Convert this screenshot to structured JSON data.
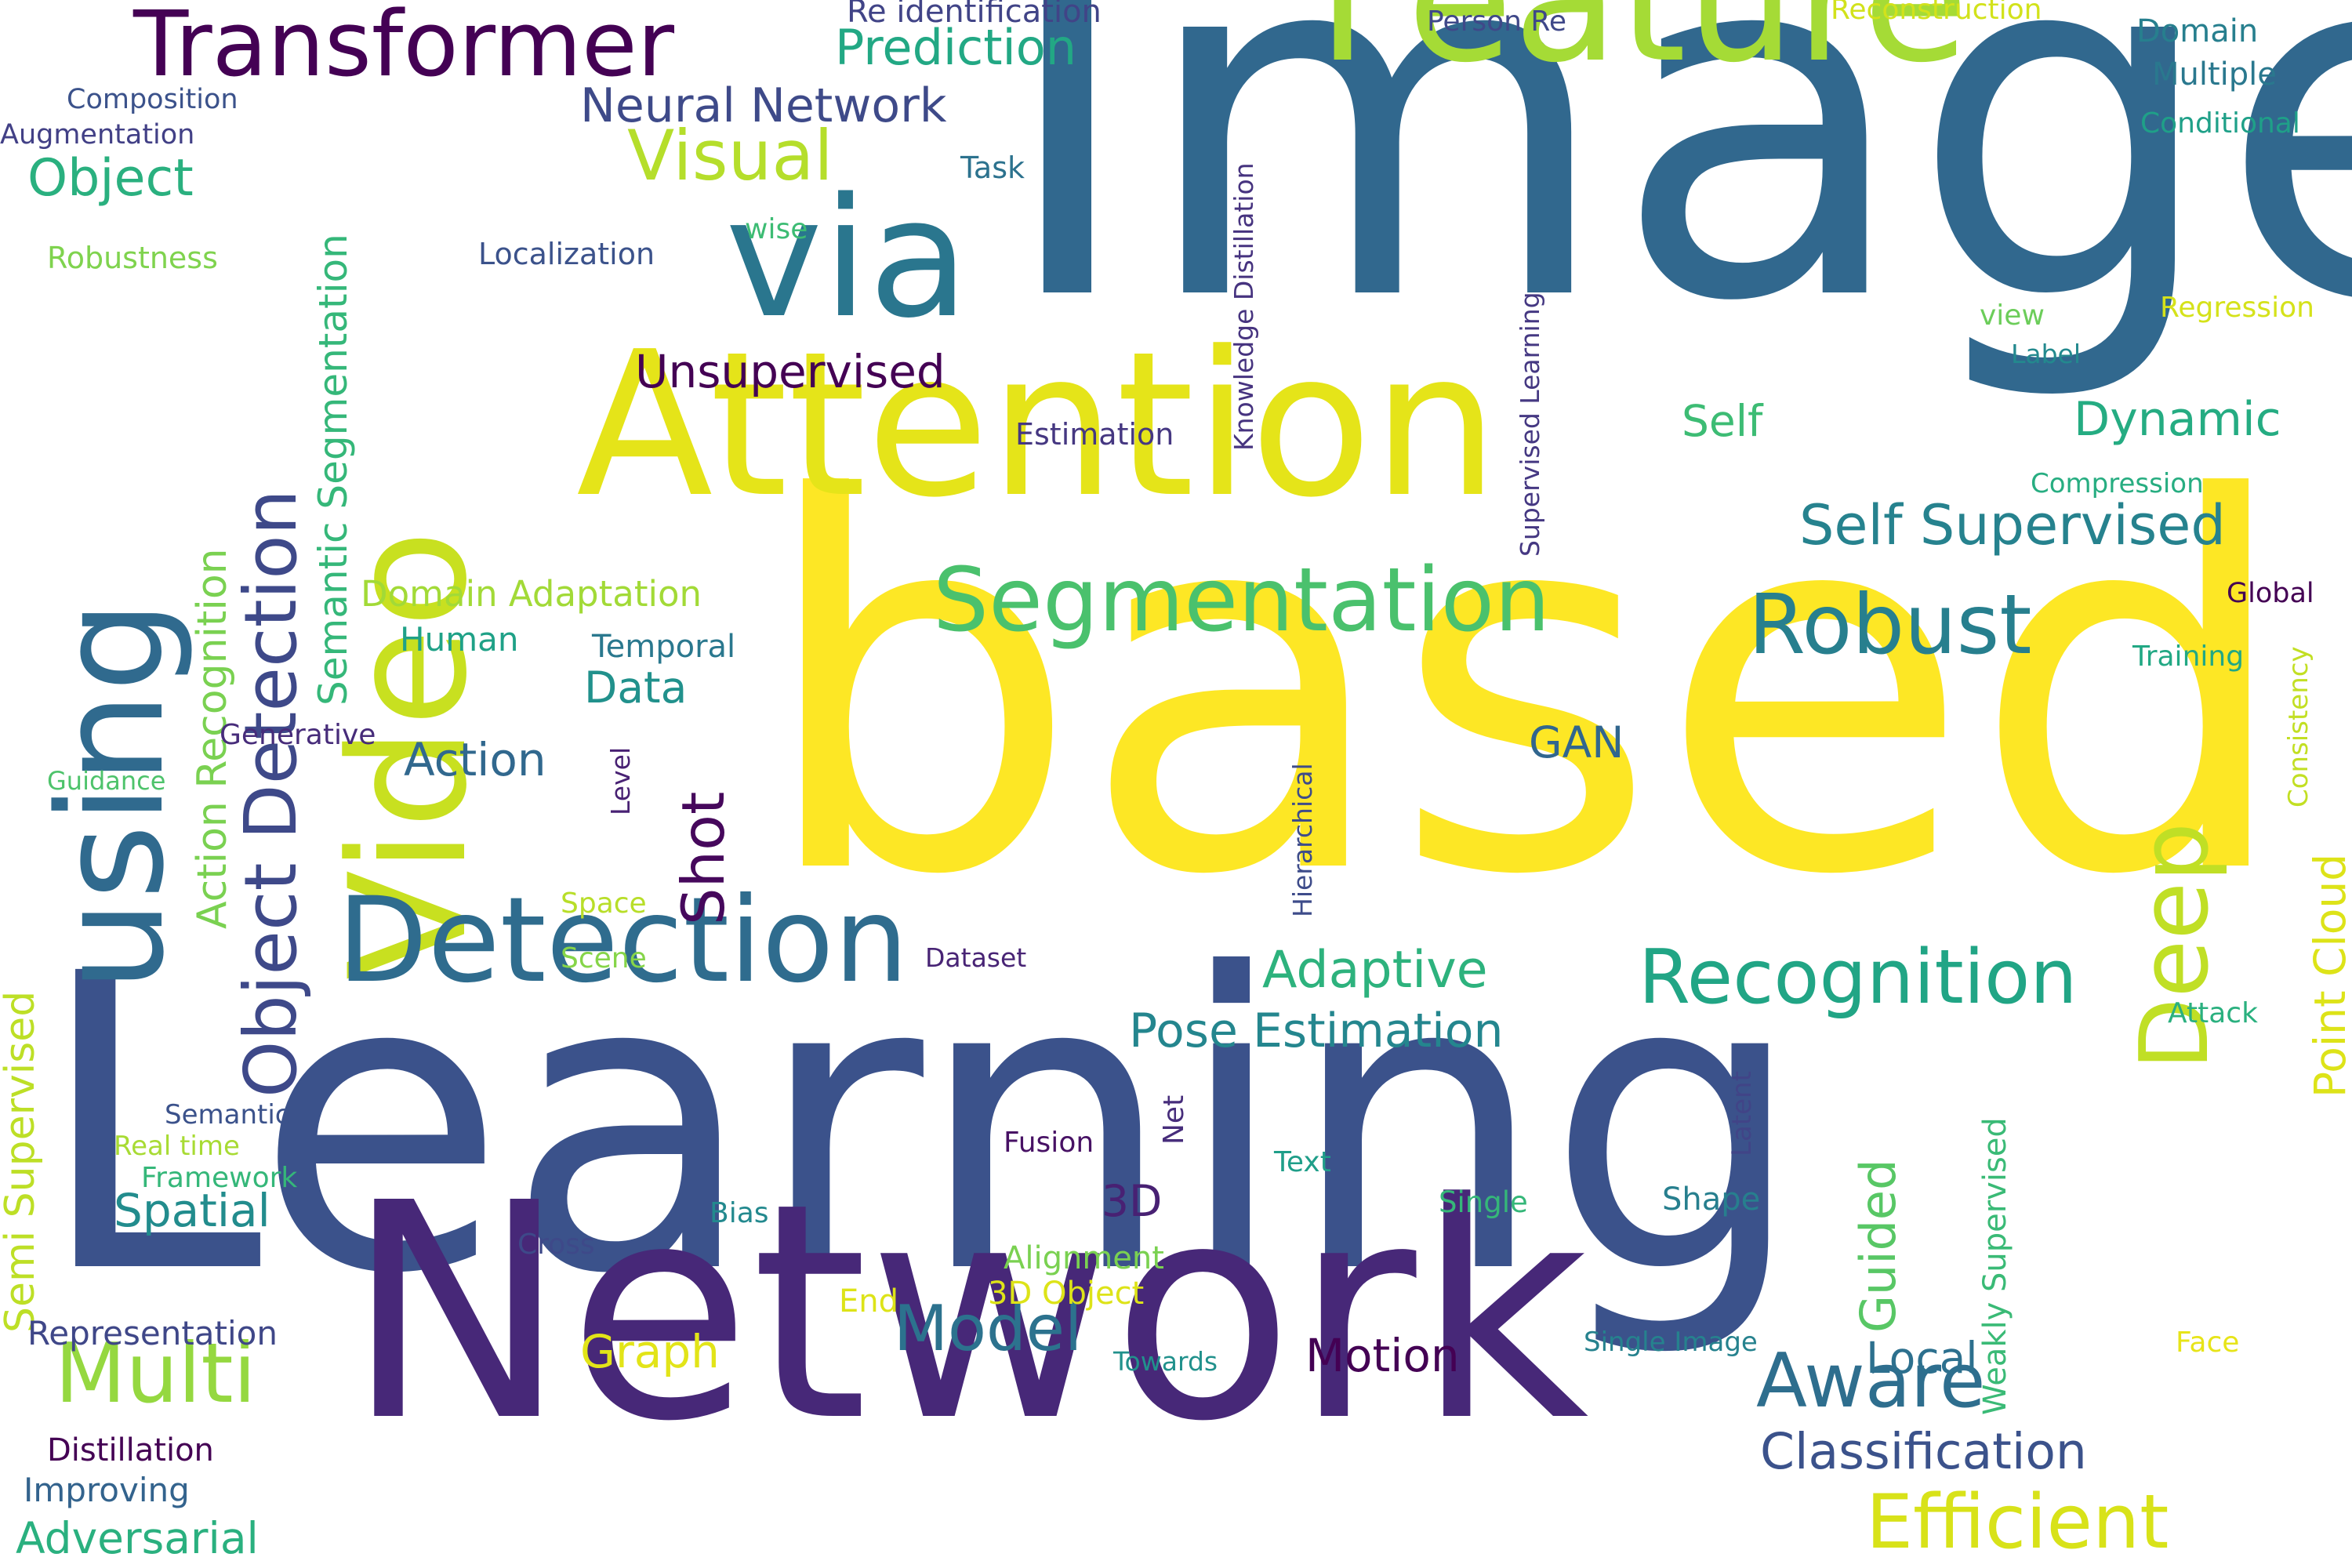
{
  "palette": {
    "background": "#ffffff",
    "c1": "#440154",
    "c2": "#472d7b",
    "c3": "#3b528b",
    "c4": "#2c728e",
    "c5": "#21918c",
    "c6": "#28ae80",
    "c7": "#5ec962",
    "c8": "#addc30",
    "c9": "#dde318",
    "c10": "#fde725"
  },
  "words": [
    {
      "text": "Learning",
      "color": "#3b528b"
    },
    {
      "text": "based",
      "color": "#fde725"
    },
    {
      "text": "Image",
      "color": "#31688e"
    },
    {
      "text": "Network",
      "color": "#472878"
    },
    {
      "text": "Video",
      "color": "#c8e020"
    },
    {
      "text": "Attention",
      "color": "#e5e419"
    },
    {
      "text": "using",
      "color": "#306a8e"
    },
    {
      "text": "Feature",
      "color": "#a5db36"
    },
    {
      "text": "via",
      "color": "#2a768e"
    },
    {
      "text": "Detection",
      "color": "#2f6c8e"
    },
    {
      "text": "Transformer",
      "color": "#440154"
    },
    {
      "text": "Deep",
      "color": "#c0df25"
    },
    {
      "text": "Object Detection",
      "color": "#3e4989"
    },
    {
      "text": "Segmentation",
      "color": "#4ac16d"
    },
    {
      "text": "Recognition",
      "color": "#21a585"
    },
    {
      "text": "Robust",
      "color": "#277f8e"
    },
    {
      "text": "Multi",
      "color": "#95d840"
    },
    {
      "text": "Aware",
      "color": "#2e6e8e"
    },
    {
      "text": "Efficient",
      "color": "#d8e219"
    },
    {
      "text": "Self Supervised",
      "color": "#26828e"
    },
    {
      "text": "Model",
      "color": "#2c728e"
    },
    {
      "text": "Classification",
      "color": "#3b528b"
    },
    {
      "text": "Semantic Segmentation",
      "color": "#35b779"
    },
    {
      "text": "Visual",
      "color": "#b5de2b"
    },
    {
      "text": "Neural Network",
      "color": "#3e4a89"
    },
    {
      "text": "Action Recognition",
      "color": "#7ad151"
    },
    {
      "text": "Semi Supervised",
      "color": "#bddf26"
    },
    {
      "text": "Unsupervised",
      "color": "#440154"
    },
    {
      "text": "Shot",
      "color": "#46085c"
    },
    {
      "text": "Prediction",
      "color": "#22a884"
    },
    {
      "text": "Object",
      "color": "#2ab07f"
    },
    {
      "text": "Adaptive",
      "color": "#2db27d"
    },
    {
      "text": "Pose Estimation",
      "color": "#24868e"
    },
    {
      "text": "Dynamic",
      "color": "#25ac82"
    },
    {
      "text": "Guided",
      "color": "#58c765"
    },
    {
      "text": "Point Cloud",
      "color": "#dde318"
    },
    {
      "text": "Adversarial",
      "color": "#2ab07f"
    },
    {
      "text": "Spatial",
      "color": "#228c8d"
    },
    {
      "text": "Motion",
      "color": "#440154"
    },
    {
      "text": "Local",
      "color": "#2d708e"
    },
    {
      "text": "Action",
      "color": "#31688e"
    },
    {
      "text": "Graph",
      "color": "#e2e418"
    },
    {
      "text": "Self",
      "color": "#3dbc74"
    },
    {
      "text": "Data",
      "color": "#21918c"
    },
    {
      "text": "GAN",
      "color": "#31668e"
    },
    {
      "text": "3D",
      "color": "#482173"
    },
    {
      "text": "Weakly Supervised",
      "color": "#3aba76"
    },
    {
      "text": "Domain Adaptation",
      "color": "#a2da37"
    },
    {
      "text": "Representation",
      "color": "#3f4788"
    },
    {
      "text": "Improving",
      "color": "#33638d"
    },
    {
      "text": "Distillation",
      "color": "#440154"
    },
    {
      "text": "Human",
      "color": "#1fa187"
    },
    {
      "text": "Temporal",
      "color": "#2a788e"
    },
    {
      "text": "Knowledge Distillation",
      "color": "#46337f"
    },
    {
      "text": "Supervised Learning",
      "color": "#453882"
    },
    {
      "text": "Re identification",
      "color": "#414487"
    },
    {
      "text": "Person Re",
      "color": "#3f4889"
    },
    {
      "text": "Reconstruction",
      "color": "#d2e21b"
    },
    {
      "text": "Domain",
      "color": "#277f8e"
    },
    {
      "text": "Multiple",
      "color": "#2a788e"
    },
    {
      "text": "Conditional",
      "color": "#1fa088"
    },
    {
      "text": "Regression",
      "color": "#d5e21a"
    },
    {
      "text": "view",
      "color": "#6ccd5a"
    },
    {
      "text": "Label",
      "color": "#23898e"
    },
    {
      "text": "Compression",
      "color": "#27ad81"
    },
    {
      "text": "Global",
      "color": "#440154"
    },
    {
      "text": "Training",
      "color": "#22a884"
    },
    {
      "text": "Consistency",
      "color": "#c2df23"
    },
    {
      "text": "Attack",
      "color": "#2ab07f"
    },
    {
      "text": "Composition",
      "color": "#3b528b"
    },
    {
      "text": "Augmentation",
      "color": "#424086"
    },
    {
      "text": "Robustness",
      "color": "#7fd34e"
    },
    {
      "text": "Localization",
      "color": "#3b528b"
    },
    {
      "text": "wise",
      "color": "#3dbc74"
    },
    {
      "text": "Task",
      "color": "#2c728e"
    },
    {
      "text": "Estimation",
      "color": "#453781"
    },
    {
      "text": "Generative",
      "color": "#472c7a"
    },
    {
      "text": "Guidance",
      "color": "#4ec36b"
    },
    {
      "text": "Level",
      "color": "#482173"
    },
    {
      "text": "Space",
      "color": "#b8de29"
    },
    {
      "text": "Scene",
      "color": "#86d549"
    },
    {
      "text": "Dataset",
      "color": "#482475"
    },
    {
      "text": "Hierarchical",
      "color": "#3e4c8a"
    },
    {
      "text": "Semantic",
      "color": "#3b528b"
    },
    {
      "text": "Real time",
      "color": "#a8db34"
    },
    {
      "text": "Framework",
      "color": "#35b779"
    },
    {
      "text": "Net",
      "color": "#472d7b"
    },
    {
      "text": "Fusion",
      "color": "#471164"
    },
    {
      "text": "Text",
      "color": "#1f9e89"
    },
    {
      "text": "Latent",
      "color": "#414487"
    },
    {
      "text": "Single",
      "color": "#35b779"
    },
    {
      "text": "Shape",
      "color": "#277f8e"
    },
    {
      "text": "Bias",
      "color": "#23898e"
    },
    {
      "text": "Cross",
      "color": "#3e4989"
    },
    {
      "text": "Alignment",
      "color": "#7ad151"
    },
    {
      "text": "End",
      "color": "#dde318"
    },
    {
      "text": "3D Object",
      "color": "#dde318"
    },
    {
      "text": "Towards",
      "color": "#21918c"
    },
    {
      "text": "Single Image",
      "color": "#26828e"
    },
    {
      "text": "Face",
      "color": "#e7e419"
    }
  ]
}
